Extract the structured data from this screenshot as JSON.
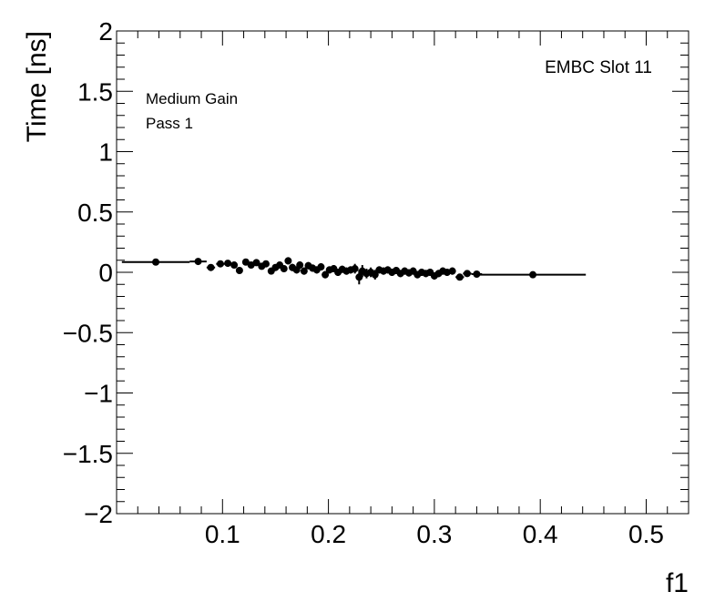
{
  "chart_data": {
    "type": "scatter",
    "xlabel": "f1",
    "ylabel": "Time [ns]",
    "xlim": [
      0.0,
      0.54
    ],
    "ylim": [
      -2,
      2
    ],
    "x_ticks": [
      0.1,
      0.2,
      0.3,
      0.4,
      0.5
    ],
    "y_ticks": [
      -2,
      -1.5,
      -1,
      -0.5,
      0,
      0.5,
      1,
      1.5,
      2
    ],
    "y_tick_labels": [
      "−2",
      "−1.5",
      "−1",
      "−0.5",
      "0",
      "0.5",
      "1",
      "1.5",
      "2"
    ],
    "x_tick_labels": [
      "0.1",
      "0.2",
      "0.3",
      "0.4",
      "0.5"
    ],
    "annotations": {
      "top_right": "EMBC Slot 11",
      "line1": "Medium Gain",
      "line2": "Pass 1"
    },
    "grid": false,
    "series": [
      {
        "points": [
          {
            "x": 0.037,
            "y": 0.085,
            "xerr": 0.032,
            "yerr": 0.01
          },
          {
            "x": 0.077,
            "y": 0.09,
            "xerr": 0.008,
            "yerr": 0.01
          },
          {
            "x": 0.089,
            "y": 0.04,
            "xerr": 0.004,
            "yerr": 0.015
          },
          {
            "x": 0.098,
            "y": 0.07,
            "xerr": 0.004,
            "yerr": 0.015
          },
          {
            "x": 0.105,
            "y": 0.075,
            "xerr": 0.003,
            "yerr": 0.015
          },
          {
            "x": 0.111,
            "y": 0.06,
            "xerr": 0.003,
            "yerr": 0.02
          },
          {
            "x": 0.116,
            "y": 0.015,
            "xerr": 0.002,
            "yerr": 0.02
          },
          {
            "x": 0.122,
            "y": 0.085,
            "xerr": 0.002,
            "yerr": 0.02
          },
          {
            "x": 0.127,
            "y": 0.06,
            "xerr": 0.002,
            "yerr": 0.02
          },
          {
            "x": 0.132,
            "y": 0.08,
            "xerr": 0.002,
            "yerr": 0.02
          },
          {
            "x": 0.137,
            "y": 0.05,
            "xerr": 0.002,
            "yerr": 0.025
          },
          {
            "x": 0.141,
            "y": 0.07,
            "xerr": 0.002,
            "yerr": 0.025
          },
          {
            "x": 0.146,
            "y": 0.01,
            "xerr": 0.002,
            "yerr": 0.025
          },
          {
            "x": 0.15,
            "y": 0.04,
            "xerr": 0.002,
            "yerr": 0.025
          },
          {
            "x": 0.154,
            "y": 0.06,
            "xerr": 0.002,
            "yerr": 0.025
          },
          {
            "x": 0.158,
            "y": 0.03,
            "xerr": 0.002,
            "yerr": 0.025
          },
          {
            "x": 0.162,
            "y": 0.095,
            "xerr": 0.002,
            "yerr": 0.03
          },
          {
            "x": 0.166,
            "y": 0.04,
            "xerr": 0.002,
            "yerr": 0.03
          },
          {
            "x": 0.17,
            "y": 0.02,
            "xerr": 0.002,
            "yerr": 0.03
          },
          {
            "x": 0.173,
            "y": 0.06,
            "xerr": 0.002,
            "yerr": 0.03
          },
          {
            "x": 0.177,
            "y": 0.01,
            "xerr": 0.002,
            "yerr": 0.03
          },
          {
            "x": 0.181,
            "y": 0.055,
            "xerr": 0.002,
            "yerr": 0.03
          },
          {
            "x": 0.185,
            "y": 0.035,
            "xerr": 0.002,
            "yerr": 0.03
          },
          {
            "x": 0.189,
            "y": 0.02,
            "xerr": 0.002,
            "yerr": 0.03
          },
          {
            "x": 0.193,
            "y": 0.045,
            "xerr": 0.002,
            "yerr": 0.03
          },
          {
            "x": 0.197,
            "y": -0.02,
            "xerr": 0.002,
            "yerr": 0.03
          },
          {
            "x": 0.201,
            "y": 0.02,
            "xerr": 0.002,
            "yerr": 0.03
          },
          {
            "x": 0.205,
            "y": 0.03,
            "xerr": 0.002,
            "yerr": 0.03
          },
          {
            "x": 0.209,
            "y": 0.0,
            "xerr": 0.002,
            "yerr": 0.03
          },
          {
            "x": 0.213,
            "y": 0.025,
            "xerr": 0.002,
            "yerr": 0.03
          },
          {
            "x": 0.217,
            "y": 0.01,
            "xerr": 0.002,
            "yerr": 0.03
          },
          {
            "x": 0.221,
            "y": 0.02,
            "xerr": 0.002,
            "yerr": 0.03
          },
          {
            "x": 0.225,
            "y": 0.03,
            "xerr": 0.002,
            "yerr": 0.04
          },
          {
            "x": 0.229,
            "y": -0.04,
            "xerr": 0.002,
            "yerr": 0.06
          },
          {
            "x": 0.232,
            "y": 0.01,
            "xerr": 0.002,
            "yerr": 0.05
          },
          {
            "x": 0.236,
            "y": -0.01,
            "xerr": 0.002,
            "yerr": 0.04
          },
          {
            "x": 0.24,
            "y": 0.0,
            "xerr": 0.002,
            "yerr": 0.04
          },
          {
            "x": 0.244,
            "y": -0.02,
            "xerr": 0.002,
            "yerr": 0.04
          },
          {
            "x": 0.248,
            "y": 0.02,
            "xerr": 0.002,
            "yerr": 0.03
          },
          {
            "x": 0.252,
            "y": 0.01,
            "xerr": 0.002,
            "yerr": 0.03
          },
          {
            "x": 0.256,
            "y": 0.02,
            "xerr": 0.002,
            "yerr": 0.03
          },
          {
            "x": 0.26,
            "y": 0.0,
            "xerr": 0.002,
            "yerr": 0.03
          },
          {
            "x": 0.264,
            "y": 0.015,
            "xerr": 0.002,
            "yerr": 0.03
          },
          {
            "x": 0.268,
            "y": -0.01,
            "xerr": 0.002,
            "yerr": 0.03
          },
          {
            "x": 0.272,
            "y": 0.01,
            "xerr": 0.002,
            "yerr": 0.03
          },
          {
            "x": 0.276,
            "y": -0.005,
            "xerr": 0.002,
            "yerr": 0.03
          },
          {
            "x": 0.28,
            "y": 0.01,
            "xerr": 0.002,
            "yerr": 0.03
          },
          {
            "x": 0.284,
            "y": -0.02,
            "xerr": 0.002,
            "yerr": 0.03
          },
          {
            "x": 0.288,
            "y": 0.0,
            "xerr": 0.002,
            "yerr": 0.03
          },
          {
            "x": 0.292,
            "y": -0.01,
            "xerr": 0.002,
            "yerr": 0.03
          },
          {
            "x": 0.296,
            "y": 0.0,
            "xerr": 0.002,
            "yerr": 0.03
          },
          {
            "x": 0.3,
            "y": -0.03,
            "xerr": 0.002,
            "yerr": 0.03
          },
          {
            "x": 0.304,
            "y": -0.01,
            "xerr": 0.002,
            "yerr": 0.03
          },
          {
            "x": 0.308,
            "y": 0.01,
            "xerr": 0.002,
            "yerr": 0.03
          },
          {
            "x": 0.312,
            "y": 0.0,
            "xerr": 0.003,
            "yerr": 0.03
          },
          {
            "x": 0.317,
            "y": 0.01,
            "xerr": 0.003,
            "yerr": 0.03
          },
          {
            "x": 0.324,
            "y": -0.04,
            "xerr": 0.004,
            "yerr": 0.025
          },
          {
            "x": 0.331,
            "y": -0.01,
            "xerr": 0.004,
            "yerr": 0.02
          },
          {
            "x": 0.34,
            "y": -0.015,
            "xerr": 0.005,
            "yerr": 0.015
          },
          {
            "x": 0.393,
            "y": -0.02,
            "xerr": 0.05,
            "yerr": 0.01
          }
        ]
      }
    ]
  }
}
